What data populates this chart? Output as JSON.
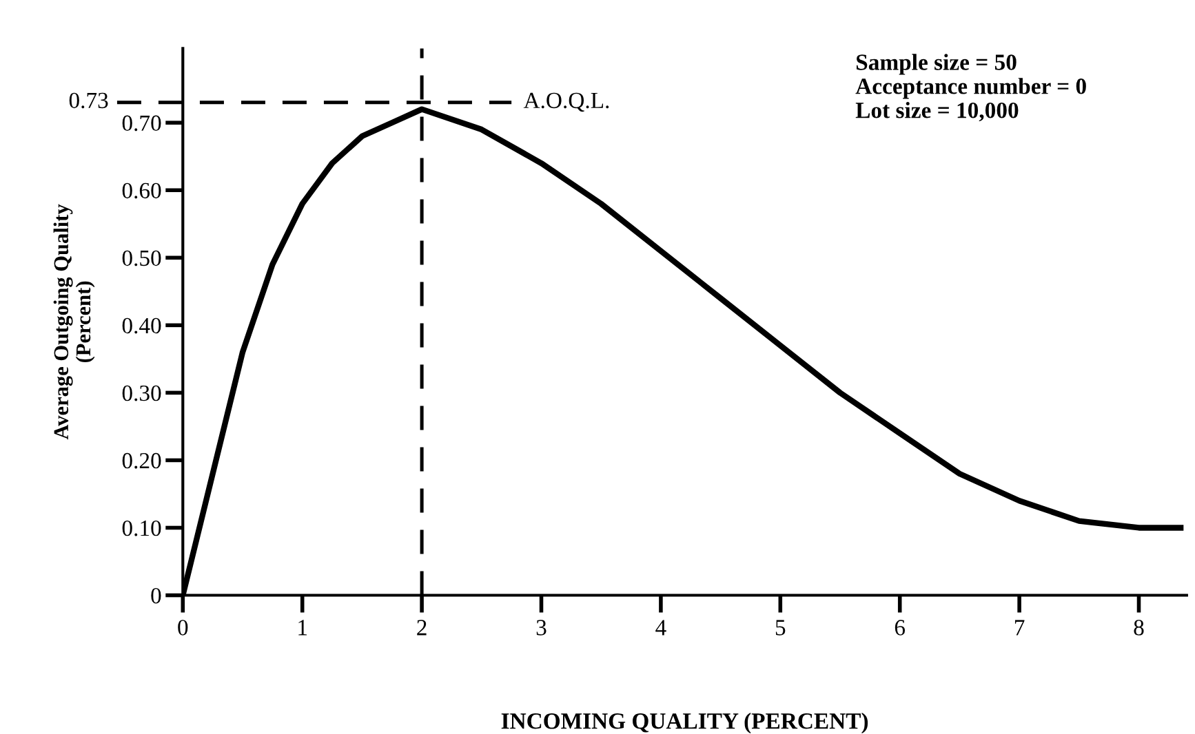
{
  "chart_data": {
    "type": "line",
    "xlabel": "INCOMING QUALITY (PERCENT)",
    "ylabel": "Average Outgoing Quality\n(Percent)",
    "x": [
      0,
      0.25,
      0.5,
      0.75,
      1,
      1.25,
      1.5,
      1.75,
      2,
      2.5,
      3,
      3.5,
      4,
      4.5,
      5,
      5.5,
      6,
      6.5,
      7,
      7.5,
      8,
      8.35
    ],
    "series": [
      {
        "color": "#000000",
        "values": [
          0,
          0.18,
          0.36,
          0.49,
          0.58,
          0.64,
          0.68,
          0.7,
          0.72,
          0.69,
          0.64,
          0.58,
          0.51,
          0.44,
          0.37,
          0.3,
          0.24,
          0.18,
          0.14,
          0.11,
          0.1,
          0.1
        ]
      }
    ],
    "xlim": [
      0,
      8.4
    ],
    "ylim": [
      0,
      0.81
    ],
    "xticks": [
      0,
      1,
      2,
      3,
      4,
      5,
      6,
      7,
      8
    ],
    "yticks": [
      0,
      {
        "value": 0.1,
        "label": "0.10"
      },
      {
        "value": 0.2,
        "label": "0.20"
      },
      {
        "value": 0.3,
        "label": "0.30"
      },
      {
        "value": 0.4,
        "label": "0.40"
      },
      {
        "value": 0.5,
        "label": "0.50"
      },
      {
        "value": 0.6,
        "label": "0.60"
      },
      {
        "value": 0.7,
        "label": "0.70"
      }
    ],
    "ref_lines": [
      {
        "axis": "y",
        "value": 0.73,
        "label": "A.O.Q.L.",
        "line_style": "dashed",
        "color": "#000000"
      },
      {
        "axis": "x",
        "value": 2,
        "line_style": "dashed",
        "color": "#000000"
      }
    ],
    "annotations": [
      "0.73",
      "Sample size = 50\nAcceptance number = 0\nLot size = 10,000"
    ],
    "grid": false,
    "legend": false,
    "marker": "none",
    "line_style": "solid"
  }
}
